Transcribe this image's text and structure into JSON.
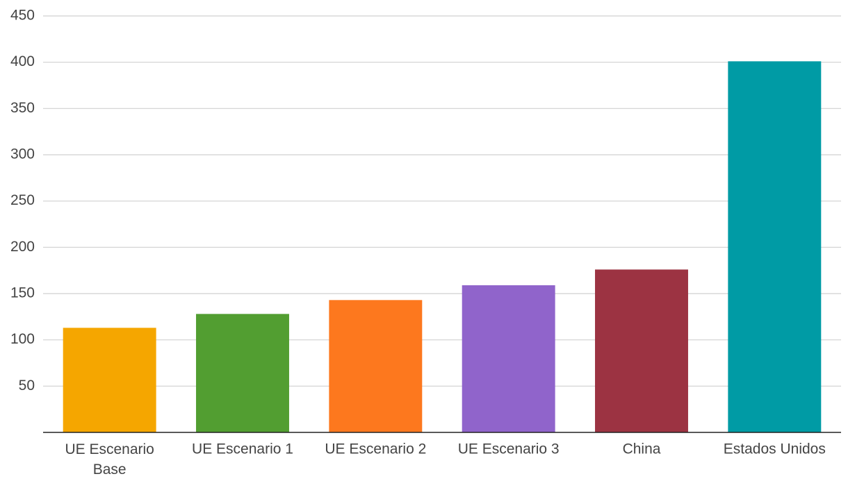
{
  "chart_data": {
    "type": "bar",
    "categories": [
      "UE Escenario Base",
      "UE Escenario 1",
      "UE Escenario 2",
      "UE Escenario 3",
      "China",
      "Estados Unidos"
    ],
    "values": [
      113,
      128,
      143,
      159,
      176,
      401
    ],
    "colors": [
      "#f5a600",
      "#529e31",
      "#fd781e",
      "#9064cb",
      "#9c3342",
      "#009ba5"
    ],
    "ylim": [
      0,
      450
    ],
    "yticks": [
      50,
      100,
      150,
      200,
      250,
      300,
      350,
      400,
      450
    ],
    "grid": true
  }
}
